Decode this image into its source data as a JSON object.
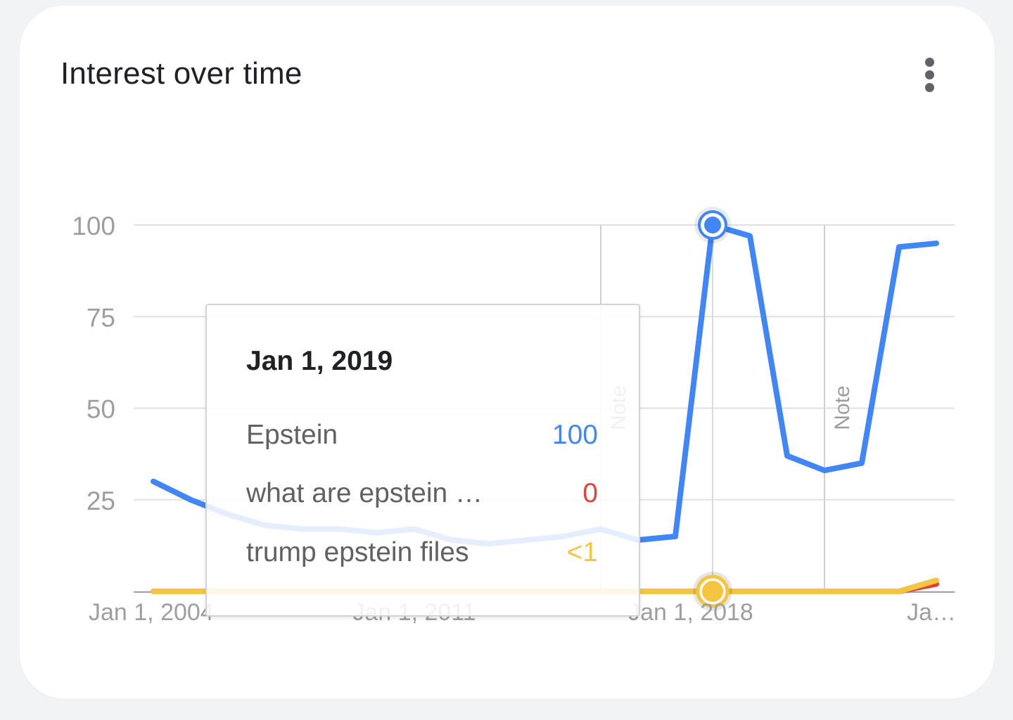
{
  "card": {
    "title": "Interest over time"
  },
  "colors": {
    "epstein": "#4285f4",
    "what_are": "#db4437",
    "trump": "#f4c542",
    "grid": "#e0e0e0",
    "axis_text": "#9e9e9e"
  },
  "chart_data": {
    "type": "line",
    "title": "",
    "x_tick_labels": [
      "Jan 1, 2004",
      "Jan 1, 2011",
      "Jan 1, 2018",
      "Ja…"
    ],
    "y_ticks": [
      25,
      50,
      75,
      100
    ],
    "ylim": [
      0,
      100
    ],
    "x": [
      "2004-01-01",
      "2005-01-01",
      "2006-01-01",
      "2007-01-01",
      "2008-01-01",
      "2009-01-01",
      "2010-01-01",
      "2011-01-01",
      "2012-01-01",
      "2013-01-01",
      "2014-01-01",
      "2015-01-01",
      "2016-01-01",
      "2017-01-01",
      "2018-01-01",
      "2019-01-01",
      "2020-01-01",
      "2021-01-01",
      "2022-01-01",
      "2023-01-01",
      "2024-01-01",
      "2025-01-01"
    ],
    "series": [
      {
        "name": "Epstein",
        "values": [
          30,
          25,
          21,
          18,
          17,
          17,
          16,
          17,
          14,
          13,
          14,
          15,
          17,
          14,
          15,
          100,
          97,
          37,
          33,
          35,
          94,
          95
        ]
      },
      {
        "name": "what are epstein …",
        "values": [
          0,
          0,
          0,
          0,
          0,
          0,
          0,
          0,
          0,
          0,
          0,
          0,
          0,
          0,
          0,
          0,
          0,
          0,
          0,
          0,
          0,
          2
        ]
      },
      {
        "name": "trump epstein files",
        "values": [
          0,
          0,
          0,
          0,
          0,
          0,
          0,
          0,
          0,
          0,
          0,
          0,
          0,
          0,
          0,
          0,
          0,
          0,
          0,
          0,
          0,
          3
        ]
      }
    ],
    "notes": [
      {
        "x": "2016-01-01",
        "label": "Note"
      },
      {
        "x": "2022-01-01",
        "label": "Note"
      }
    ],
    "highlight_x": "2019-01-01",
    "grid": true,
    "legend": "none"
  },
  "tooltip": {
    "date": "Jan 1, 2019",
    "rows": [
      {
        "label": "Epstein",
        "value": "100"
      },
      {
        "label": "what are epstein …",
        "value": "0"
      },
      {
        "label": "trump epstein files",
        "value": "<1"
      }
    ]
  }
}
